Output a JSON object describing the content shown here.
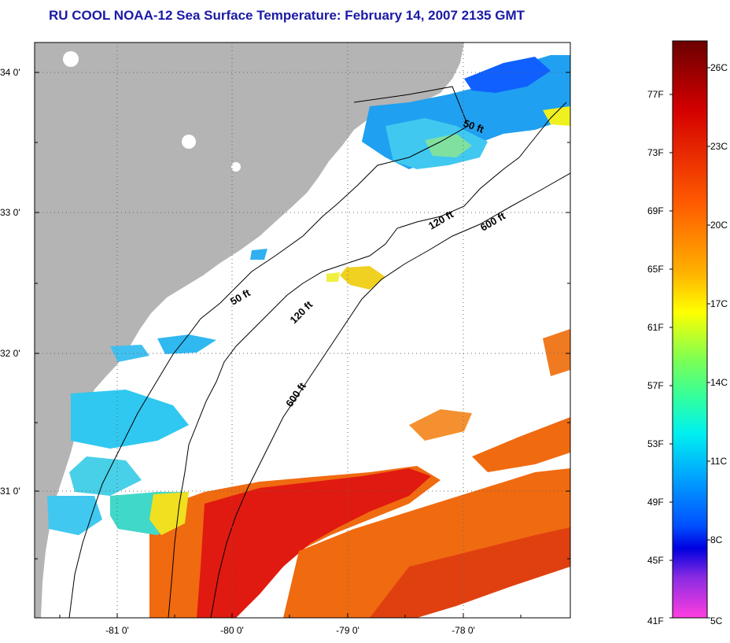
{
  "title": "RU COOL  NOAA-12  Sea Surface Temperature:  February 14, 2007 2135 GMT",
  "map": {
    "lat_labels": [
      "34 0'",
      "33 0'",
      "32 0'",
      "31 0'"
    ],
    "lon_labels": [
      "-81 0'",
      "-80 0'",
      "-79 0'",
      "-78 0'"
    ],
    "isobath_labels": [
      "50 ft",
      "120 ft",
      "600 ft",
      "50 ft",
      "120 ft",
      "600 ft"
    ]
  },
  "colorbar": {
    "fahrenheit_labels": [
      "77F",
      "73F",
      "69F",
      "65F",
      "61F",
      "57F",
      "53F",
      "49F",
      "45F",
      "41F"
    ],
    "celsius_labels": [
      "26C",
      "23C",
      "20C",
      "17C",
      "14C",
      "11C",
      "8C",
      "5C"
    ],
    "colors": [
      "#7a0000",
      "#cc0000",
      "#ff3b00",
      "#ff8c00",
      "#ffd200",
      "#ffff00",
      "#a0ff40",
      "#30ff90",
      "#00f0f0",
      "#00a0ff",
      "#0040ff",
      "#0000d0",
      "#8a2be2",
      "#ff40e0"
    ]
  },
  "colors": {
    "land": "#b4b4b4",
    "title": "#1a1aa6",
    "warm": "#e01a10",
    "orange": "#f06a10",
    "cyan": "#30d8f0",
    "blue": "#2080ff",
    "yellow": "#f0f020"
  }
}
